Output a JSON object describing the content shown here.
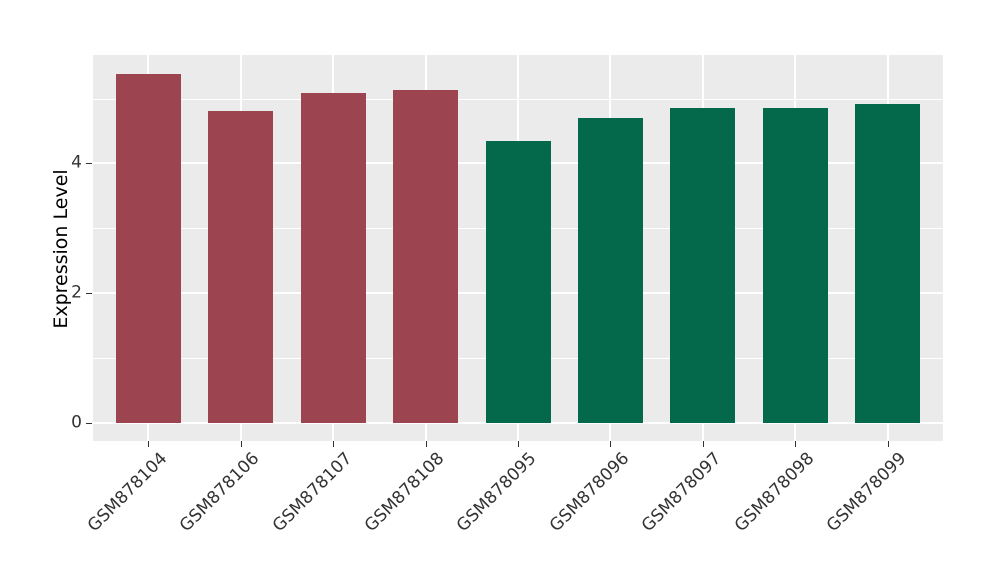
{
  "chart_data": {
    "type": "bar",
    "title": "",
    "xlabel": "",
    "ylabel": "Expression Level",
    "categories": [
      "GSM878104",
      "GSM878106",
      "GSM878107",
      "GSM878108",
      "GSM878095",
      "GSM878096",
      "GSM878097",
      "GSM878098",
      "GSM878099"
    ],
    "values": [
      5.38,
      4.81,
      5.09,
      5.13,
      4.35,
      4.7,
      4.86,
      4.86,
      4.92
    ],
    "bar_colors": [
      "#9C4450",
      "#9C4450",
      "#9C4450",
      "#9C4450",
      "#04684A",
      "#04684A",
      "#04684A",
      "#04684A",
      "#04684A"
    ],
    "group_colors": {
      "left_group": "#9C4450",
      "right_group": "#04684A"
    },
    "y_ticks": [
      0,
      2,
      4
    ],
    "y_minor_ticks": [
      1,
      3,
      5
    ],
    "ylim": [
      -0.28,
      5.67
    ],
    "grid": true,
    "legend_position": "none",
    "panel_bg": "#EBEBEB",
    "grid_color": "#FFFFFF",
    "tick_label_color": "#333333",
    "axis_title_color": "#000000"
  }
}
